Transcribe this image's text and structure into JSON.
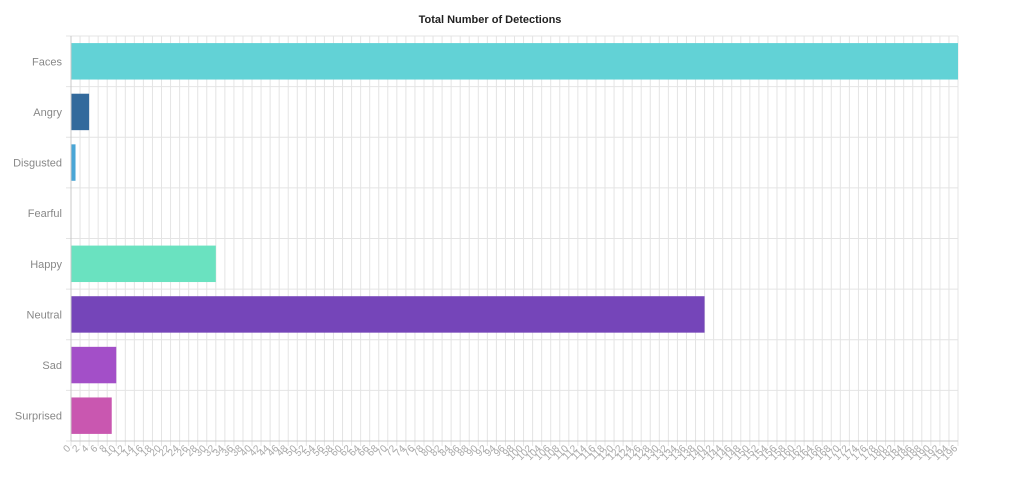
{
  "chart_data": {
    "type": "bar",
    "orientation": "horizontal",
    "title": "Total Number of Detections",
    "xlabel": "",
    "ylabel": "",
    "categories": [
      "Faces",
      "Angry",
      "Disgusted",
      "Fearful",
      "Happy",
      "Neutral",
      "Sad",
      "Surprised"
    ],
    "values": [
      196,
      4,
      1,
      0,
      32,
      140,
      10,
      9
    ],
    "colors": [
      "#62d2d6",
      "#336a9c",
      "#4aa6d6",
      "#cccccc",
      "#6ae2c0",
      "#7545b9",
      "#a34fc8",
      "#c957b0"
    ],
    "xlim": [
      0,
      196
    ],
    "xtick_step": 2,
    "grid": true,
    "legend": "none"
  }
}
